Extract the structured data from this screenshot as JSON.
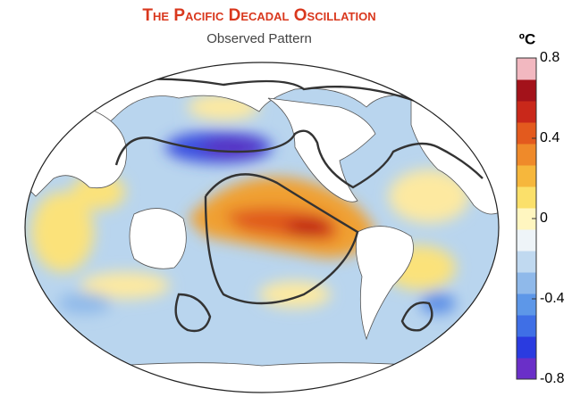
{
  "title": "The Pacific Decadal Oscillation",
  "subtitle": "Observed Pattern",
  "colorbar": {
    "unit": "ºC",
    "range": [
      -0.8,
      0.8
    ],
    "ticks": [
      0.8,
      0.4,
      0,
      -0.4,
      -0.8
    ],
    "colors": [
      "#6a2fc8",
      "#2a3be0",
      "#3f6fe6",
      "#5d97e8",
      "#8fb9ea",
      "#c0d9f0",
      "#eef4f8",
      "#fff6c0",
      "#fbe06a",
      "#f6b73c",
      "#ef8a2a",
      "#e35a1e",
      "#c9281a",
      "#a3121a",
      "#f2b8c0"
    ]
  }
}
